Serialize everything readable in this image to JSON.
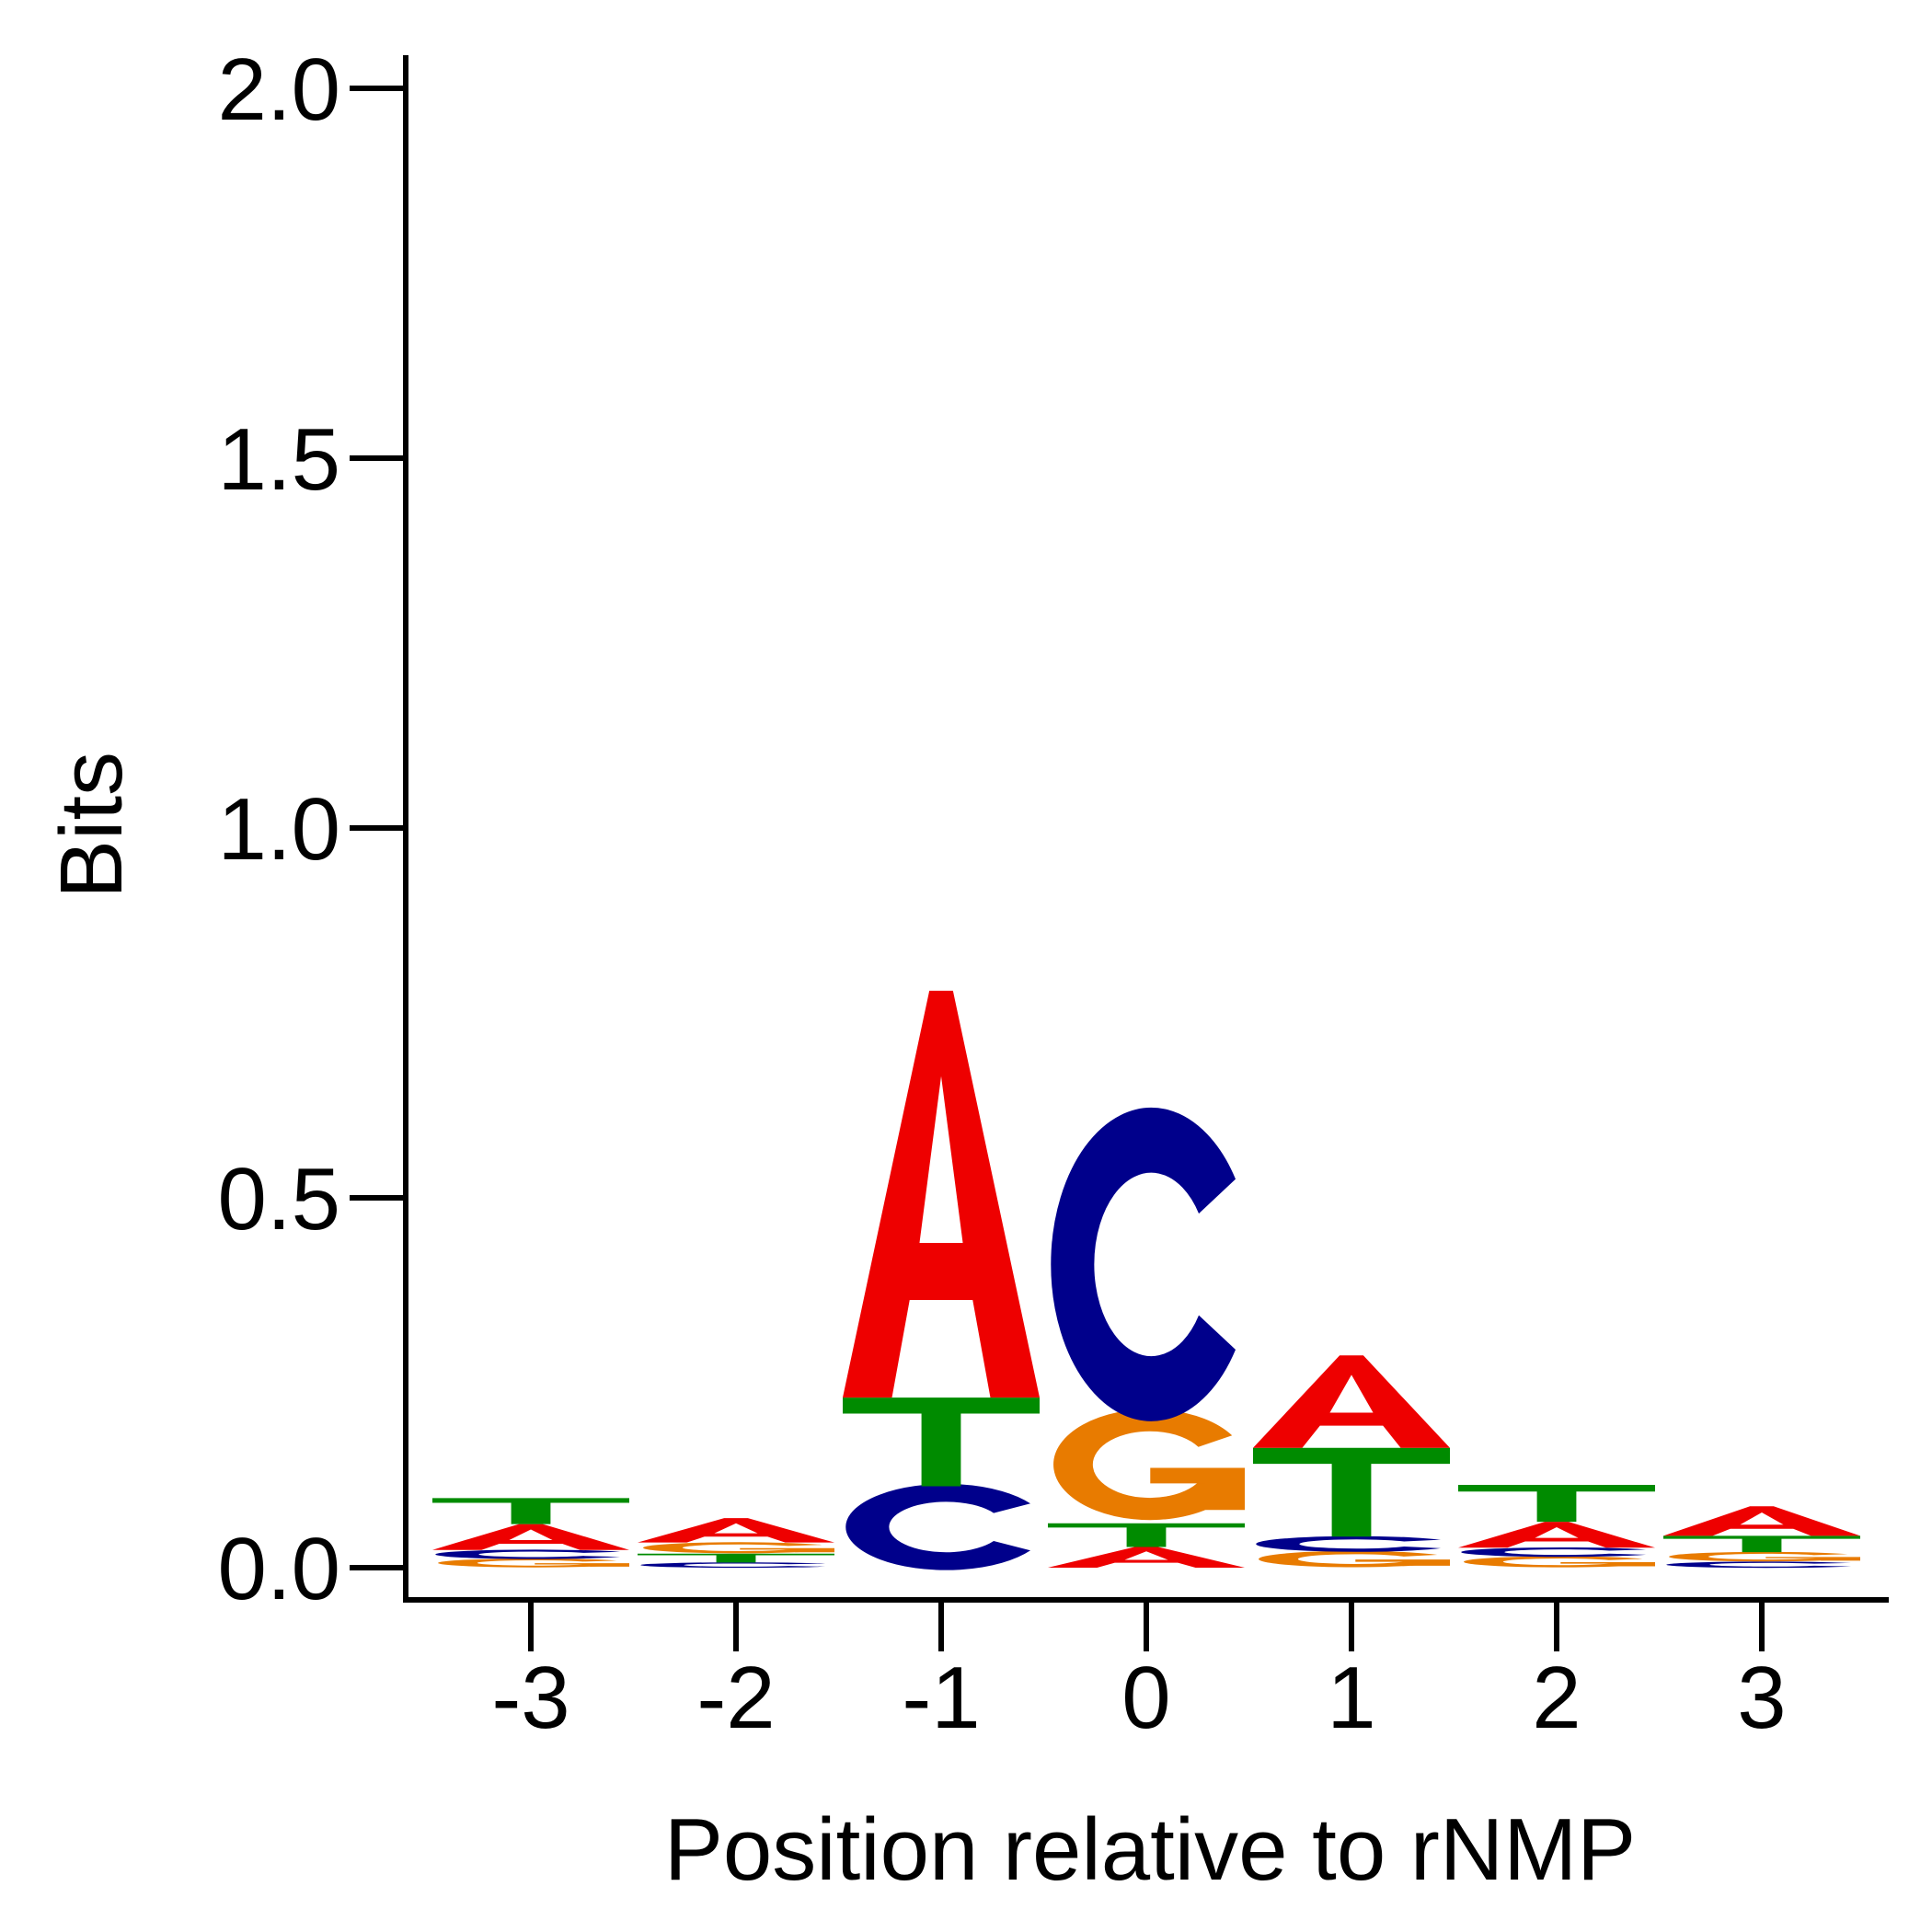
{
  "chart_data": {
    "type": "sequence-logo",
    "title": "",
    "xlabel": "Position relative to rNMP",
    "ylabel": "Bits",
    "ylim": [
      0,
      2.0
    ],
    "y_ticks": [
      "0.0",
      "0.5",
      "1.0",
      "1.5",
      "2.0"
    ],
    "x_ticks": [
      "-3",
      "-2",
      "-1",
      "0",
      "1",
      "2",
      "3"
    ],
    "colors": {
      "A": "#ee0000",
      "C": "#00008b",
      "G": "#e87b00",
      "T": "#008b00"
    },
    "positions": [
      {
        "position": "-3",
        "stack": [
          {
            "base": "G",
            "bits": 0.012
          },
          {
            "base": "C",
            "bits": 0.012
          },
          {
            "base": "A",
            "bits": 0.035
          },
          {
            "base": "T",
            "bits": 0.035
          }
        ]
      },
      {
        "position": "-2",
        "stack": [
          {
            "base": "C",
            "bits": 0.007
          },
          {
            "base": "T",
            "bits": 0.012
          },
          {
            "base": "G",
            "bits": 0.015
          },
          {
            "base": "A",
            "bits": 0.033
          }
        ]
      },
      {
        "position": "-1",
        "stack": [
          {
            "base": "C",
            "bits": 0.11
          },
          {
            "base": "T",
            "bits": 0.12
          },
          {
            "base": "A",
            "bits": 0.55
          }
        ]
      },
      {
        "position": "0",
        "stack": [
          {
            "base": "A",
            "bits": 0.028
          },
          {
            "base": "T",
            "bits": 0.032
          },
          {
            "base": "G",
            "bits": 0.15
          },
          {
            "base": "C",
            "bits": 0.4
          }
        ]
      },
      {
        "position": "1",
        "stack": [
          {
            "base": "G",
            "bits": 0.022
          },
          {
            "base": "C",
            "bits": 0.02
          },
          {
            "base": "T",
            "bits": 0.12
          },
          {
            "base": "A",
            "bits": 0.125
          }
        ]
      },
      {
        "position": "2",
        "stack": [
          {
            "base": "G",
            "bits": 0.015
          },
          {
            "base": "C",
            "bits": 0.012
          },
          {
            "base": "A",
            "bits": 0.035
          },
          {
            "base": "T",
            "bits": 0.05
          }
        ]
      },
      {
        "position": "3",
        "stack": [
          {
            "base": "C",
            "bits": 0.008
          },
          {
            "base": "G",
            "bits": 0.013
          },
          {
            "base": "T",
            "bits": 0.022
          },
          {
            "base": "A",
            "bits": 0.04
          }
        ]
      }
    ]
  }
}
